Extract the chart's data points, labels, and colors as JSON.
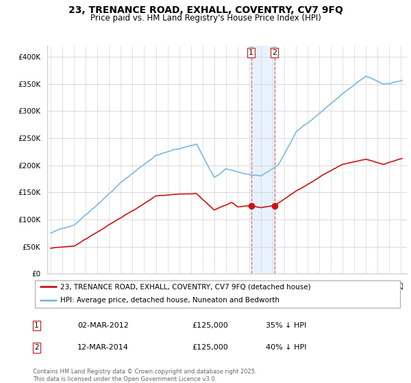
{
  "title": "23, TRENANCE ROAD, EXHALL, COVENTRY, CV7 9FQ",
  "subtitle": "Price paid vs. HM Land Registry's House Price Index (HPI)",
  "title_fontsize": 10,
  "subtitle_fontsize": 8.5,
  "ylim": [
    0,
    420000
  ],
  "yticks": [
    0,
    50000,
    100000,
    150000,
    200000,
    250000,
    300000,
    350000,
    400000
  ],
  "ytick_labels": [
    "£0",
    "£50K",
    "£100K",
    "£150K",
    "£200K",
    "£250K",
    "£300K",
    "£350K",
    "£400K"
  ],
  "hpi_color": "#7ab8e8",
  "price_color": "#cc1111",
  "vline_color": "#dd6666",
  "highlight_color": "#e8f2ff",
  "legend_label_price": "23, TRENANCE ROAD, EXHALL, COVENTRY, CV7 9FQ (detached house)",
  "legend_label_hpi": "HPI: Average price, detached house, Nuneaton and Bedworth",
  "transaction_1_date": "02-MAR-2012",
  "transaction_1_price": "£125,000",
  "transaction_1_hpi": "35% ↓ HPI",
  "transaction_2_date": "12-MAR-2014",
  "transaction_2_price": "£125,000",
  "transaction_2_hpi": "40% ↓ HPI",
  "footer": "Contains HM Land Registry data © Crown copyright and database right 2025.\nThis data is licensed under the Open Government Licence v3.0.",
  "xlim_start": 1994.7,
  "xlim_end": 2025.5
}
